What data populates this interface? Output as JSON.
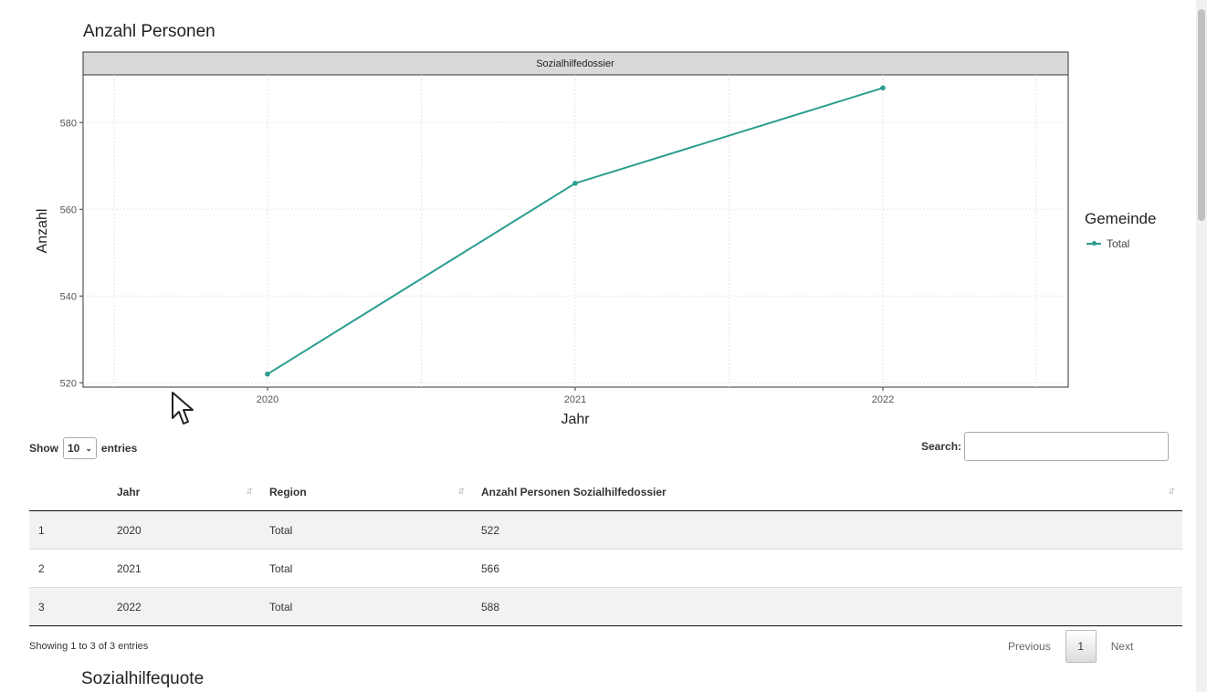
{
  "chart": {
    "title": "Anzahl Personen",
    "legend_title": "Gemeinde",
    "legend_item": "Total",
    "line_color": "#2a9d8f"
  },
  "chart_data": {
    "type": "line",
    "title": "Anzahl Personen",
    "facet": "Sozialhilfedossier",
    "xlabel": "Jahr",
    "ylabel": "Anzahl",
    "x": [
      "2020",
      "2021",
      "2022"
    ],
    "series": [
      {
        "name": "Total",
        "values": [
          522,
          566,
          588
        ]
      }
    ],
    "yticks": [
      "520",
      "540",
      "560",
      "580"
    ],
    "ylim": [
      519,
      591
    ],
    "grid": true,
    "legend": "right"
  },
  "table": {
    "show_label": "Show",
    "entries_label": "entries",
    "page_length": "10",
    "search_label": "Search:",
    "search_value": "",
    "columns": [
      "",
      "Jahr",
      "Region",
      "Anzahl Personen Sozialhilfedossier"
    ],
    "rows": [
      [
        "1",
        "2020",
        "Total",
        "522"
      ],
      [
        "2",
        "2021",
        "Total",
        "566"
      ],
      [
        "3",
        "2022",
        "Total",
        "588"
      ]
    ],
    "info": "Showing 1 to 3 of 3 entries",
    "previous": "Previous",
    "current_page": "1",
    "next": "Next"
  },
  "next_section_title": "Sozialhilfequote"
}
